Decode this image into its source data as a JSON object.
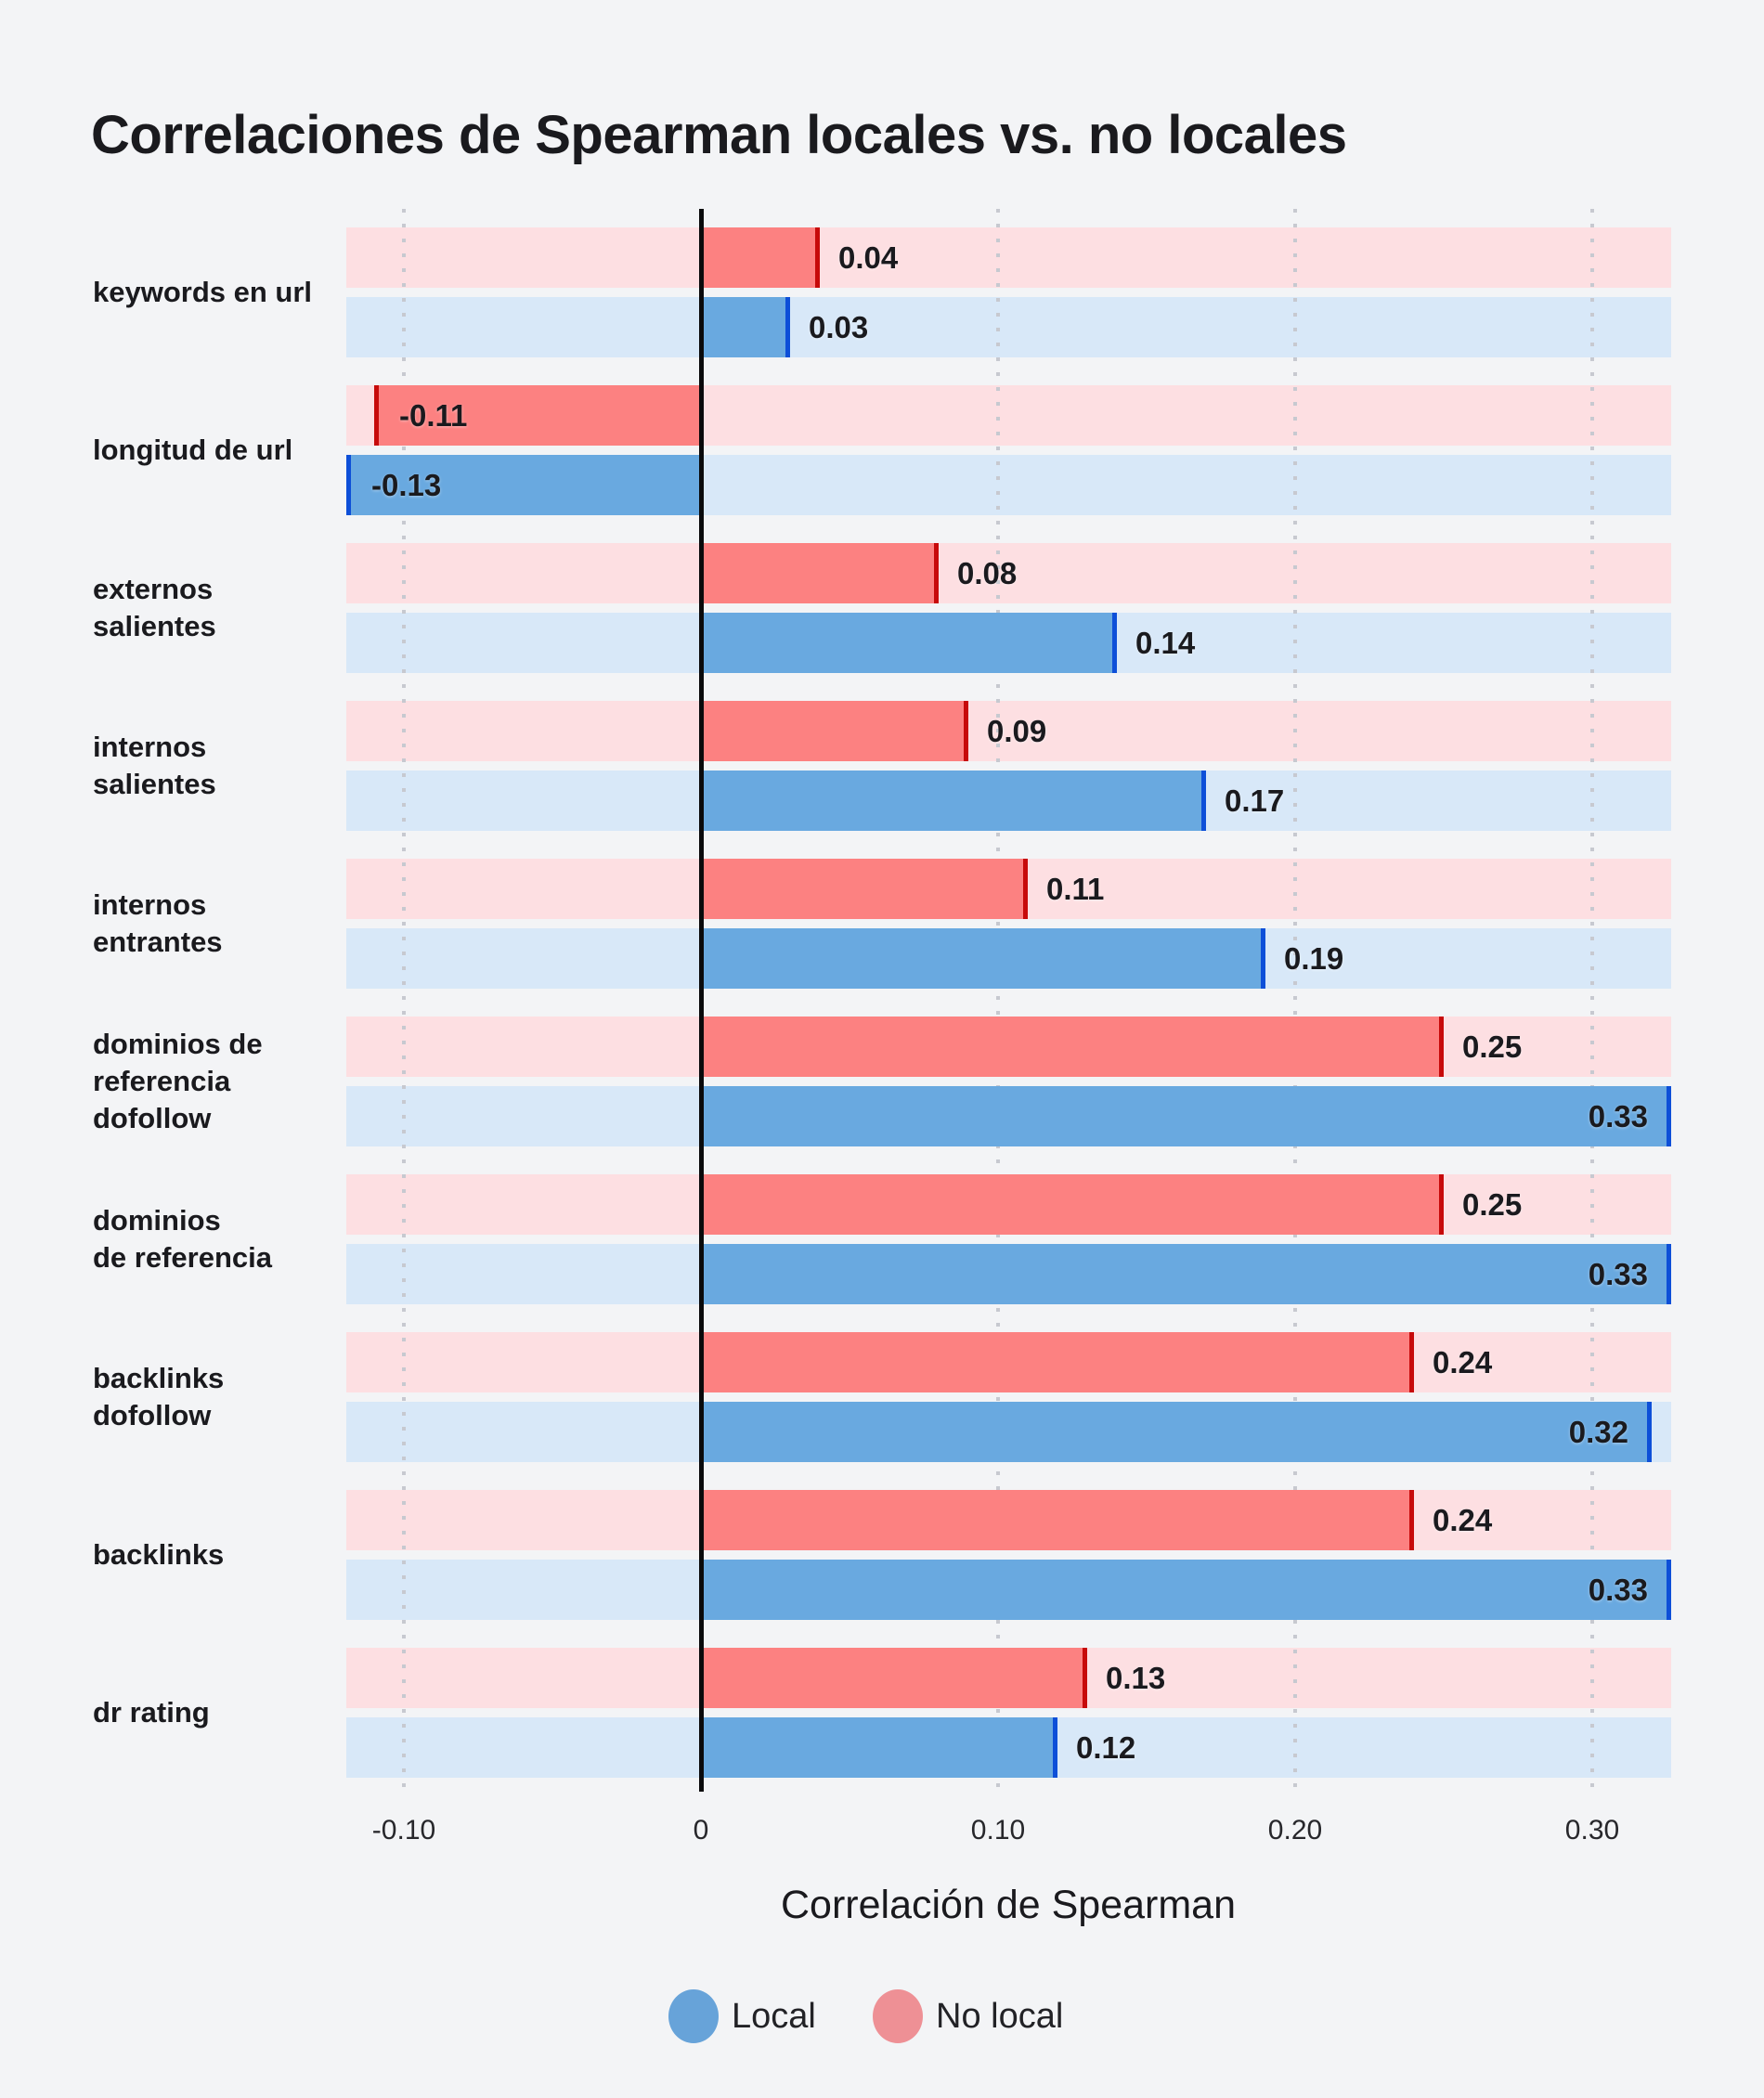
{
  "title": "Correlaciones de Spearman locales vs. no locales",
  "axis": {
    "label": "Correlación de Spearman",
    "ticks": [
      "-0.10",
      "0",
      "0.10",
      "0.20",
      "0.30"
    ],
    "tick_values": [
      -0.1,
      0,
      0.1,
      0.2,
      0.3
    ]
  },
  "legend": {
    "items": [
      {
        "label": "Local",
        "color": "#67a3d9"
      },
      {
        "label": "No local",
        "color": "#ee9095"
      }
    ]
  },
  "colors": {
    "background": "#f3f4f6",
    "track_no_local": "#fddfe2",
    "bar_no_local": "#fc8181",
    "cap_no_local": "#c70a0a",
    "track_local": "#d8e8f8",
    "bar_local": "#69a9e0",
    "cap_local": "#0d4fd8",
    "zero_line": "#0a0a0c",
    "gridline": "#c7c9d0",
    "text": "#1a1a1e"
  },
  "chart_data": {
    "type": "bar",
    "orientation": "horizontal",
    "title": "Correlaciones de Spearman locales vs. no locales",
    "xlabel": "Correlación de Spearman",
    "xlim": [
      -0.13,
      0.33
    ],
    "grid": "dotted-vertical",
    "legend_position": "bottom",
    "categories": [
      "keywords en url",
      "longitud de url",
      "externos salientes",
      "internos salientes",
      "internos entrantes",
      "dominios de referencia dofollow",
      "dominios de referencia",
      "backlinks dofollow",
      "backlinks",
      "dr rating"
    ],
    "category_lines": [
      [
        "keywords en url"
      ],
      [
        "longitud de url"
      ],
      [
        "externos",
        "salientes"
      ],
      [
        "internos",
        "salientes"
      ],
      [
        "internos",
        "entrantes"
      ],
      [
        "dominios de",
        "referencia",
        "dofollow"
      ],
      [
        "dominios",
        "de referencia"
      ],
      [
        "backlinks",
        "dofollow"
      ],
      [
        "backlinks"
      ],
      [
        "dr rating"
      ]
    ],
    "series": [
      {
        "name": "No local",
        "values": [
          0.04,
          -0.11,
          0.08,
          0.09,
          0.11,
          0.25,
          0.25,
          0.24,
          0.24,
          0.13
        ]
      },
      {
        "name": "Local",
        "values": [
          0.03,
          -0.13,
          0.14,
          0.17,
          0.19,
          0.33,
          0.33,
          0.32,
          0.33,
          0.12
        ]
      }
    ],
    "value_labels": [
      {
        "category": "keywords en url",
        "no_local": "0.04",
        "local": "0.03"
      },
      {
        "category": "longitud de url",
        "no_local": "-0.11",
        "local": "-0.13"
      },
      {
        "category": "externos salientes",
        "no_local": "0.08",
        "local": "0.14"
      },
      {
        "category": "internos salientes",
        "no_local": "0.09",
        "local": "0.17"
      },
      {
        "category": "internos entrantes",
        "no_local": "0.11",
        "local": "0.19"
      },
      {
        "category": "dominios de referencia dofollow",
        "no_local": "0.25",
        "local": "0.33"
      },
      {
        "category": "dominios de referencia",
        "no_local": "0.25",
        "local": "0.33"
      },
      {
        "category": "backlinks dofollow",
        "no_local": "0.24",
        "local": "0.32"
      },
      {
        "category": "backlinks",
        "no_local": "0.24",
        "local": "0.33"
      },
      {
        "category": "dr rating",
        "no_local": "0.13",
        "local": "0.12"
      }
    ]
  }
}
